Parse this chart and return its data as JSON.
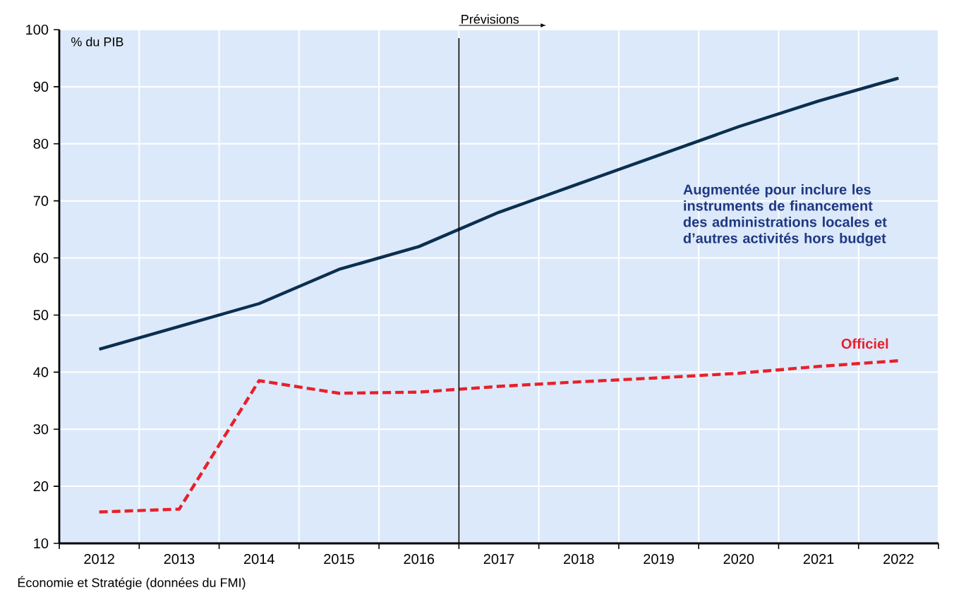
{
  "chart_data": {
    "type": "line",
    "ylabel": "% du PIB",
    "x": [
      2012,
      2013,
      2014,
      2015,
      2016,
      2017,
      2018,
      2019,
      2020,
      2021,
      2022
    ],
    "xlim": [
      2011.5,
      2022.5
    ],
    "xticks": [
      2012,
      2013,
      2014,
      2015,
      2016,
      2017,
      2018,
      2019,
      2020,
      2021,
      2022
    ],
    "ylim": [
      10,
      100
    ],
    "yticks": [
      10,
      20,
      30,
      40,
      50,
      60,
      70,
      80,
      90,
      100
    ],
    "grid": true,
    "marker": "none",
    "series": [
      {
        "name": "Augmentée pour inclure les instruments de financement des administrations locales et d’autres activités hors budget",
        "color": "#0b2f4f",
        "line_style": "solid",
        "values": [
          44,
          48,
          52,
          58,
          62,
          68,
          73,
          78,
          83,
          87.5,
          91.5
        ]
      },
      {
        "name": "Officiel",
        "color": "#e8202a",
        "line_style": "dashed",
        "values": [
          15.5,
          16,
          38.5,
          36.3,
          36.5,
          37.5,
          38.3,
          39,
          39.8,
          41,
          42
        ]
      }
    ],
    "ref_lines": [
      {
        "axis": "x",
        "value": 2016.5,
        "label": "Prévisions",
        "color": "#000000"
      }
    ],
    "annotations": [
      "Économie et Stratégie (données du FMI)"
    ]
  }
}
